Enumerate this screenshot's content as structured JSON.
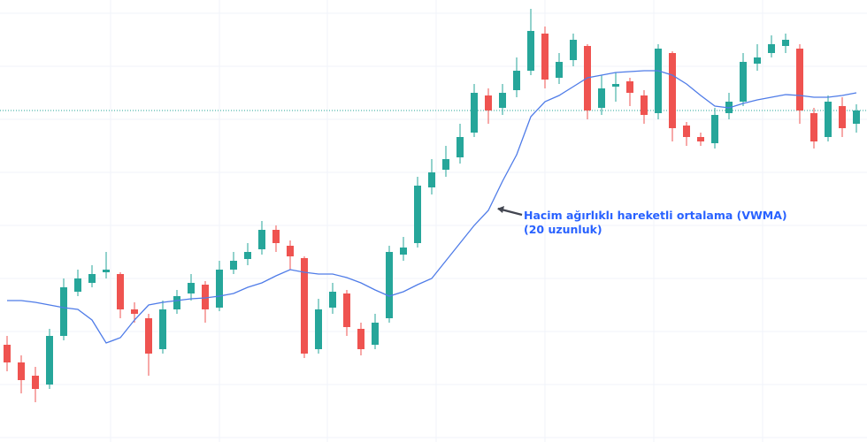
{
  "chart_data": {
    "type": "candlestick",
    "annotation": [
      "Hacim ağırlıklı hareketli ortalama (VWMA)",
      "(20 uzunluk)"
    ],
    "ylim": [
      0,
      500
    ],
    "grid": true,
    "up_color": "#26a69a",
    "down_color": "#ef5350",
    "open": [
      110,
      90,
      75,
      65,
      120,
      170,
      180,
      192,
      190,
      150,
      140,
      105,
      150,
      168,
      178,
      152,
      195,
      207,
      218,
      240,
      222,
      208,
      105,
      152,
      168,
      128,
      110,
      140,
      212,
      225,
      288,
      308,
      322,
      350,
      392,
      378,
      398,
      420,
      462,
      412,
      432,
      448,
      378,
      402,
      408,
      392,
      372,
      440,
      358,
      345,
      338,
      372,
      385,
      428,
      440,
      448,
      445,
      372,
      345,
      380,
      360
    ],
    "high": [
      120,
      98,
      85,
      128,
      185,
      195,
      200,
      215,
      192,
      158,
      145,
      160,
      172,
      190,
      182,
      205,
      215,
      225,
      250,
      245,
      228,
      210,
      162,
      180,
      172,
      135,
      145,
      222,
      232,
      300,
      320,
      335,
      360,
      405,
      400,
      405,
      435,
      490,
      470,
      440,
      462,
      450,
      415,
      418,
      412,
      398,
      450,
      442,
      362,
      350,
      378,
      395,
      440,
      450,
      460,
      462,
      450,
      378,
      392,
      390,
      382
    ],
    "low": [
      80,
      55,
      45,
      60,
      115,
      165,
      175,
      185,
      140,
      135,
      75,
      100,
      145,
      160,
      135,
      148,
      190,
      200,
      212,
      215,
      195,
      95,
      100,
      145,
      120,
      98,
      105,
      135,
      205,
      220,
      280,
      300,
      315,
      345,
      360,
      370,
      390,
      415,
      400,
      405,
      425,
      365,
      370,
      385,
      380,
      360,
      365,
      340,
      335,
      335,
      332,
      365,
      380,
      420,
      435,
      440,
      360,
      332,
      340,
      345,
      350
    ],
    "close": [
      90,
      70,
      60,
      120,
      175,
      185,
      190,
      195,
      150,
      145,
      100,
      150,
      165,
      180,
      150,
      195,
      205,
      215,
      240,
      225,
      210,
      100,
      150,
      170,
      130,
      105,
      135,
      215,
      220,
      290,
      305,
      320,
      345,
      395,
      375,
      395,
      420,
      465,
      410,
      430,
      455,
      375,
      400,
      405,
      395,
      370,
      445,
      355,
      345,
      340,
      370,
      385,
      430,
      435,
      450,
      455,
      375,
      340,
      385,
      355,
      375
    ],
    "vwma": {
      "color": "#4f7ce8",
      "values": [
        160,
        160,
        158,
        155,
        152,
        150,
        138,
        112,
        118,
        138,
        155,
        158,
        160,
        162,
        163,
        165,
        168,
        175,
        180,
        188,
        195,
        192,
        190,
        190,
        186,
        180,
        172,
        165,
        170,
        178,
        185,
        205,
        225,
        245,
        262,
        295,
        325,
        368,
        385,
        392,
        402,
        412,
        415,
        418,
        419,
        420,
        420,
        415,
        405,
        392,
        380,
        378,
        383,
        387,
        390,
        393,
        392,
        390,
        390,
        392,
        395
      ]
    }
  }
}
